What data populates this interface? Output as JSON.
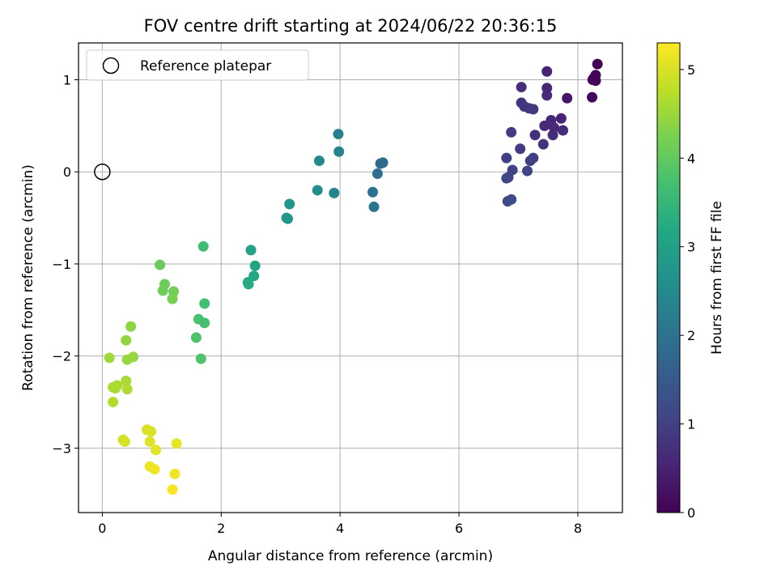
{
  "chart_data": {
    "type": "scatter",
    "title": "FOV centre drift starting at 2024/06/22 20:36:15",
    "xlabel": "Angular distance from reference (arcmin)",
    "ylabel": "Rotation from reference (arcmin)",
    "xlim": [
      -0.4,
      8.75
    ],
    "ylim": [
      -3.7,
      1.4
    ],
    "xticks": [
      0,
      2,
      4,
      6,
      8
    ],
    "yticks": [
      1,
      0,
      -1,
      -2,
      -3
    ],
    "grid": true,
    "legend": {
      "placement": "top-left",
      "entries": [
        "Reference platepar"
      ]
    },
    "reference_point": {
      "x": 0,
      "y": 0,
      "label": "Reference platepar"
    },
    "colorbar": {
      "label": "Hours from first FF file",
      "colormap": "viridis",
      "min": 0,
      "max": 5.3,
      "ticks": [
        0,
        1,
        2,
        3,
        4,
        5
      ]
    },
    "points": [
      {
        "x": 8.33,
        "y": 1.17,
        "h": 0.02
      },
      {
        "x": 8.3,
        "y": 1.05,
        "h": 0.05
      },
      {
        "x": 8.27,
        "y": 1.02,
        "h": 0.06
      },
      {
        "x": 8.25,
        "y": 1.0,
        "h": 0.08
      },
      {
        "x": 8.3,
        "y": 0.99,
        "h": 0.07
      },
      {
        "x": 8.24,
        "y": 0.81,
        "h": 0.1
      },
      {
        "x": 7.82,
        "y": 0.8,
        "h": 0.3
      },
      {
        "x": 7.48,
        "y": 1.09,
        "h": 0.5
      },
      {
        "x": 7.48,
        "y": 0.91,
        "h": 0.6
      },
      {
        "x": 7.48,
        "y": 0.83,
        "h": 0.65
      },
      {
        "x": 7.05,
        "y": 0.92,
        "h": 0.7
      },
      {
        "x": 7.05,
        "y": 0.75,
        "h": 0.8
      },
      {
        "x": 7.1,
        "y": 0.71,
        "h": 0.82
      },
      {
        "x": 7.18,
        "y": 0.69,
        "h": 0.83
      },
      {
        "x": 7.25,
        "y": 0.68,
        "h": 0.85
      },
      {
        "x": 7.72,
        "y": 0.58,
        "h": 0.55
      },
      {
        "x": 7.55,
        "y": 0.56,
        "h": 0.6
      },
      {
        "x": 7.44,
        "y": 0.5,
        "h": 0.62
      },
      {
        "x": 7.6,
        "y": 0.48,
        "h": 0.64
      },
      {
        "x": 7.75,
        "y": 0.45,
        "h": 0.66
      },
      {
        "x": 7.58,
        "y": 0.4,
        "h": 0.68
      },
      {
        "x": 7.28,
        "y": 0.4,
        "h": 0.7
      },
      {
        "x": 6.88,
        "y": 0.43,
        "h": 0.92
      },
      {
        "x": 7.42,
        "y": 0.3,
        "h": 0.75
      },
      {
        "x": 7.03,
        "y": 0.25,
        "h": 0.9
      },
      {
        "x": 7.25,
        "y": 0.15,
        "h": 0.95
      },
      {
        "x": 7.2,
        "y": 0.12,
        "h": 0.97
      },
      {
        "x": 6.8,
        "y": 0.15,
        "h": 1.0
      },
      {
        "x": 6.9,
        "y": 0.02,
        "h": 1.05
      },
      {
        "x": 7.15,
        "y": 0.01,
        "h": 1.02
      },
      {
        "x": 6.83,
        "y": -0.06,
        "h": 1.1
      },
      {
        "x": 6.8,
        "y": -0.07,
        "h": 1.12
      },
      {
        "x": 6.88,
        "y": -0.3,
        "h": 1.15
      },
      {
        "x": 6.82,
        "y": -0.32,
        "h": 1.17
      },
      {
        "x": 4.72,
        "y": 0.1,
        "h": 1.8
      },
      {
        "x": 4.68,
        "y": 0.09,
        "h": 1.85
      },
      {
        "x": 4.63,
        "y": -0.02,
        "h": 1.9
      },
      {
        "x": 4.55,
        "y": -0.22,
        "h": 2.0
      },
      {
        "x": 4.57,
        "y": -0.38,
        "h": 2.05
      },
      {
        "x": 3.97,
        "y": 0.41,
        "h": 2.3
      },
      {
        "x": 3.98,
        "y": 0.22,
        "h": 2.35
      },
      {
        "x": 3.65,
        "y": 0.12,
        "h": 2.45
      },
      {
        "x": 3.62,
        "y": -0.2,
        "h": 2.55
      },
      {
        "x": 3.9,
        "y": -0.23,
        "h": 2.4
      },
      {
        "x": 3.15,
        "y": -0.35,
        "h": 2.75
      },
      {
        "x": 3.1,
        "y": -0.5,
        "h": 2.8
      },
      {
        "x": 3.12,
        "y": -0.51,
        "h": 2.82
      },
      {
        "x": 2.5,
        "y": -0.85,
        "h": 3.05
      },
      {
        "x": 2.57,
        "y": -1.02,
        "h": 3.1
      },
      {
        "x": 2.55,
        "y": -1.13,
        "h": 3.15
      },
      {
        "x": 2.45,
        "y": -1.2,
        "h": 3.2
      },
      {
        "x": 2.46,
        "y": -1.22,
        "h": 3.22
      },
      {
        "x": 1.7,
        "y": -0.81,
        "h": 3.65
      },
      {
        "x": 1.72,
        "y": -1.43,
        "h": 3.7
      },
      {
        "x": 1.62,
        "y": -1.6,
        "h": 3.75
      },
      {
        "x": 1.72,
        "y": -1.64,
        "h": 3.72
      },
      {
        "x": 1.58,
        "y": -1.8,
        "h": 3.8
      },
      {
        "x": 1.66,
        "y": -2.03,
        "h": 3.82
      },
      {
        "x": 0.97,
        "y": -1.01,
        "h": 4.05
      },
      {
        "x": 1.05,
        "y": -1.22,
        "h": 4.1
      },
      {
        "x": 1.02,
        "y": -1.29,
        "h": 4.12
      },
      {
        "x": 1.2,
        "y": -1.3,
        "h": 4.15
      },
      {
        "x": 1.18,
        "y": -1.38,
        "h": 4.2
      },
      {
        "x": 0.48,
        "y": -1.68,
        "h": 4.4
      },
      {
        "x": 0.4,
        "y": -1.83,
        "h": 4.42
      },
      {
        "x": 0.52,
        "y": -2.01,
        "h": 4.45
      },
      {
        "x": 0.42,
        "y": -2.04,
        "h": 4.47
      },
      {
        "x": 0.12,
        "y": -2.02,
        "h": 4.55
      },
      {
        "x": 0.4,
        "y": -2.27,
        "h": 4.6
      },
      {
        "x": 0.18,
        "y": -2.34,
        "h": 4.62
      },
      {
        "x": 0.25,
        "y": -2.32,
        "h": 4.63
      },
      {
        "x": 0.22,
        "y": -2.35,
        "h": 4.64
      },
      {
        "x": 0.42,
        "y": -2.36,
        "h": 4.66
      },
      {
        "x": 0.18,
        "y": -2.5,
        "h": 4.68
      },
      {
        "x": 0.35,
        "y": -2.91,
        "h": 4.95
      },
      {
        "x": 0.38,
        "y": -2.93,
        "h": 4.97
      },
      {
        "x": 0.75,
        "y": -2.8,
        "h": 5.0
      },
      {
        "x": 0.82,
        "y": -2.82,
        "h": 5.02
      },
      {
        "x": 0.8,
        "y": -2.93,
        "h": 5.05
      },
      {
        "x": 0.9,
        "y": -3.02,
        "h": 5.08
      },
      {
        "x": 1.25,
        "y": -2.95,
        "h": 5.1
      },
      {
        "x": 0.8,
        "y": -3.2,
        "h": 5.15
      },
      {
        "x": 0.88,
        "y": -3.23,
        "h": 5.18
      },
      {
        "x": 1.22,
        "y": -3.28,
        "h": 5.2
      },
      {
        "x": 1.18,
        "y": -3.45,
        "h": 5.25
      }
    ]
  }
}
